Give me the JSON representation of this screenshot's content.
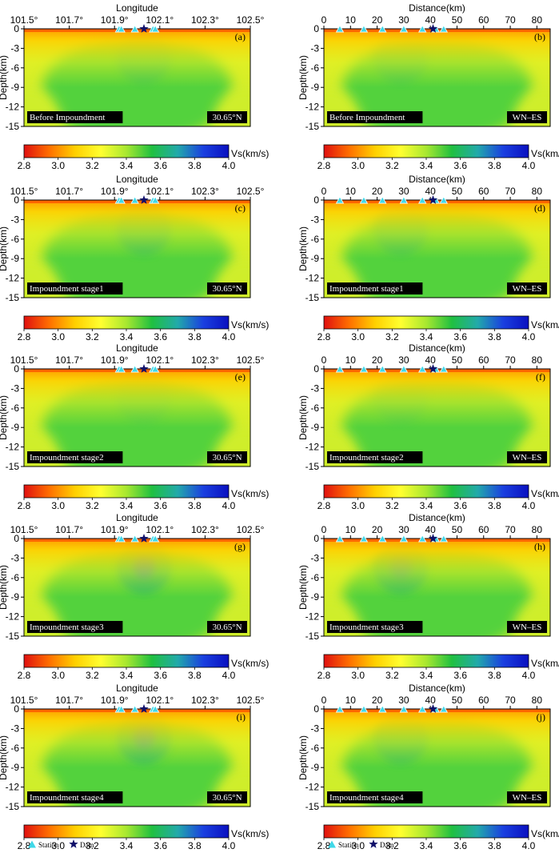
{
  "figure": {
    "panels": [
      {
        "letter": "(a)",
        "axis_kind": "longitude",
        "stage": "Before Impoundment",
        "tag": "30.65°N",
        "anomaly": 0.35
      },
      {
        "letter": "(b)",
        "axis_kind": "distance",
        "stage": "Before Impoundment",
        "tag": "WN–ES",
        "anomaly": 0.3
      },
      {
        "letter": "(c)",
        "axis_kind": "longitude",
        "stage": "Impoundment stage1",
        "tag": "30.65°N",
        "anomaly": 0.55
      },
      {
        "letter": "(d)",
        "axis_kind": "distance",
        "stage": "Impoundment stage1",
        "tag": "WN–ES",
        "anomaly": 0.45
      },
      {
        "letter": "(e)",
        "axis_kind": "longitude",
        "stage": "Impoundment stage2",
        "tag": "30.65°N",
        "anomaly": 0.2
      },
      {
        "letter": "(f)",
        "axis_kind": "distance",
        "stage": "Impoundment stage2",
        "tag": "WN–ES",
        "anomaly": 0.2
      },
      {
        "letter": "(g)",
        "axis_kind": "longitude",
        "stage": "Impoundment stage3",
        "tag": "30.65°N",
        "anomaly": 0.85
      },
      {
        "letter": "(h)",
        "axis_kind": "distance",
        "stage": "Impoundment stage3",
        "tag": "WN–ES",
        "anomaly": 0.7
      },
      {
        "letter": "(i)",
        "axis_kind": "longitude",
        "stage": "Impoundment stage4",
        "tag": "30.65°N",
        "anomaly": 0.8
      },
      {
        "letter": "(j)",
        "axis_kind": "distance",
        "stage": "Impoundment stage4",
        "tag": "WN–ES",
        "anomaly": 0.55
      }
    ],
    "longitude_axis": {
      "title": "Longitude",
      "range": [
        101.5,
        102.5
      ],
      "ticks": [
        "101.5°",
        "101.7°",
        "101.9°",
        "102.1°",
        "102.3°",
        "102.5°"
      ],
      "stations": [
        101.92,
        101.93,
        101.99,
        102.07,
        102.08
      ],
      "dam": 102.03
    },
    "distance_axis": {
      "title": "Distance(km)",
      "range": [
        0,
        85
      ],
      "ticks": [
        "0",
        "10",
        "20",
        "30",
        "40",
        "50",
        "60",
        "70",
        "80"
      ],
      "tick_values": [
        0,
        10,
        20,
        30,
        40,
        50,
        60,
        70,
        80
      ],
      "stations": [
        6,
        15,
        22,
        30,
        37,
        42,
        45
      ],
      "dam": 41
    },
    "depth_axis": {
      "title": "Depth(km)",
      "range": [
        0,
        -15
      ],
      "ticks": [
        "0",
        "-3",
        "-6",
        "-9",
        "-12",
        "-15"
      ]
    },
    "colorbar": {
      "label": "Vs(km/s)",
      "range": [
        2.8,
        4.0
      ],
      "ticks": [
        "2.8",
        "3.0",
        "3.2",
        "3.4",
        "3.6",
        "3.8",
        "4.0"
      ],
      "colors": [
        "#e01010",
        "#ff7000",
        "#ffd000",
        "#ffff30",
        "#a8e830",
        "#20c040",
        "#22aaaa",
        "#1a40e0",
        "#0a10c0"
      ]
    },
    "legend": {
      "station_label": "Station",
      "dam_label": "Dam",
      "station_color": "#3fd8e8",
      "dam_color": "#10106a"
    }
  }
}
